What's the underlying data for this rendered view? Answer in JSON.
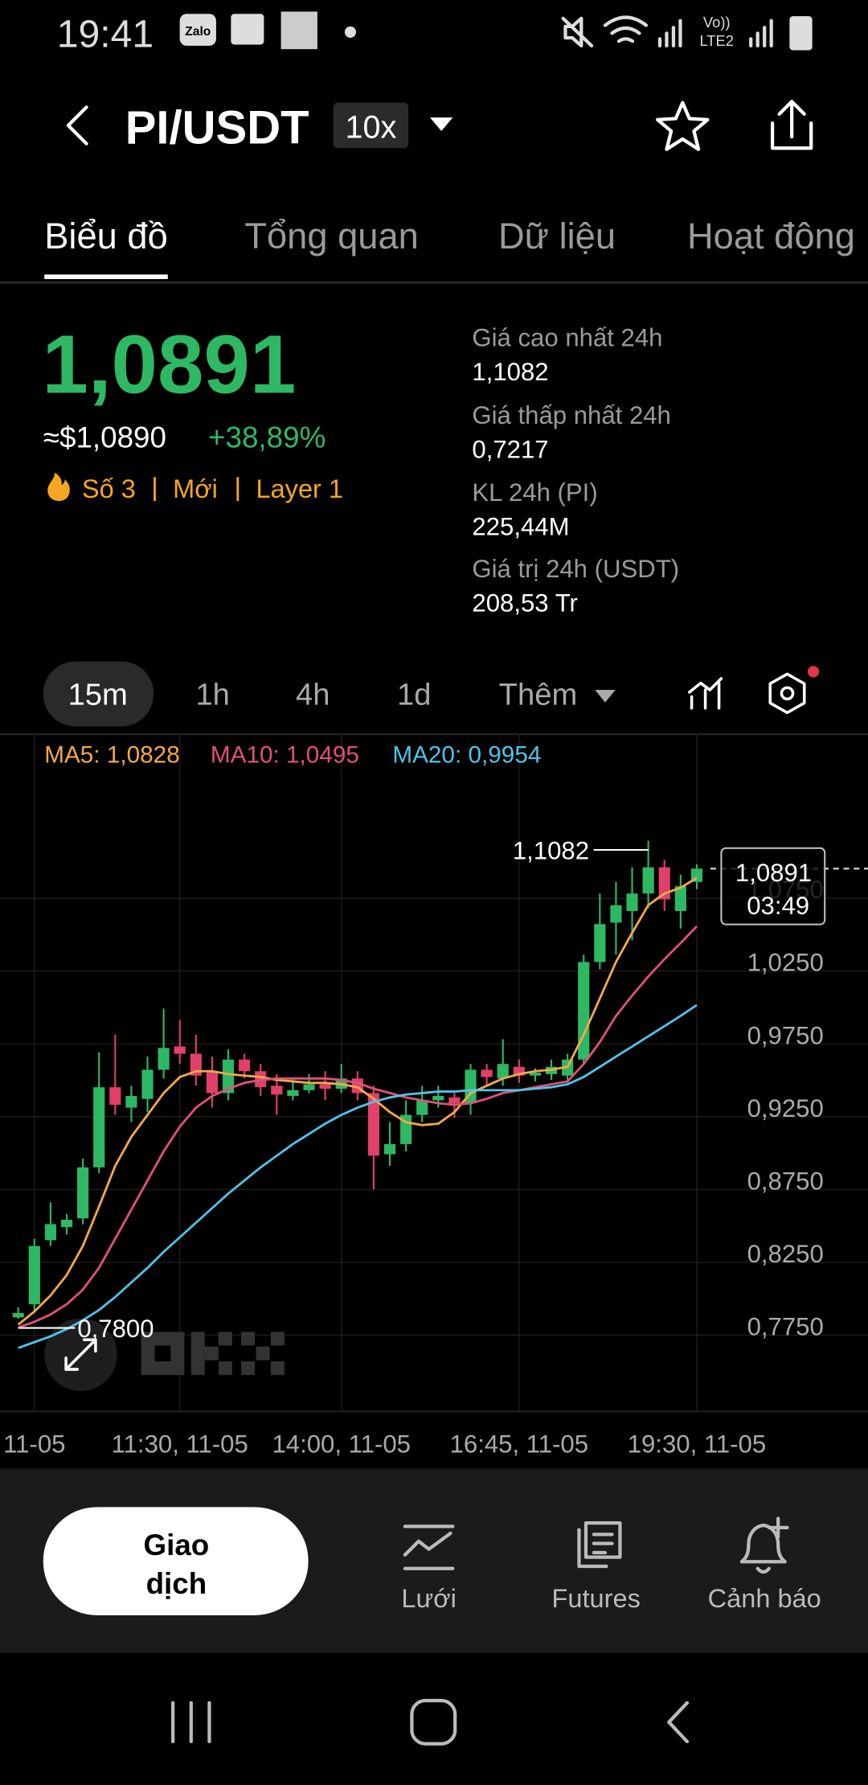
{
  "status_bar": {
    "time": "19:41",
    "zalo": "Zalo",
    "volte": "Vo))",
    "lte": "LTE2"
  },
  "header": {
    "pair": "PI/USDT",
    "leverage": "10x"
  },
  "tabs": {
    "items": [
      "Biểu đồ",
      "Tổng quan",
      "Dữ liệu",
      "Hoạt động"
    ],
    "active": 0
  },
  "ticker": {
    "price": "1,0891",
    "usd": "≈$1,0890",
    "change": "+38,89%",
    "tags": [
      "Số 3",
      "Mới",
      "Layer 1"
    ]
  },
  "stats": [
    {
      "label": "Giá cao nhất 24h",
      "value": "1,1082"
    },
    {
      "label": "Giá thấp nhất 24h",
      "value": "0,7217"
    },
    {
      "label": "KL 24h (PI)",
      "value": "225,44M"
    },
    {
      "label": "Giá trị 24h (USDT)",
      "value": "208,53 Tr"
    }
  ],
  "timeframes": {
    "items": [
      "15m",
      "1h",
      "4h",
      "1d",
      "Thêm"
    ],
    "active": 0
  },
  "chart_data": {
    "type": "candlestick",
    "categories": [
      null,
      null,
      null,
      null,
      null,
      null,
      null,
      null,
      null,
      null,
      null,
      null,
      null,
      null,
      null,
      null,
      null,
      null,
      null,
      null,
      null,
      null,
      null,
      null,
      null,
      null,
      null,
      null,
      null,
      null,
      null,
      null,
      null,
      null,
      null,
      null,
      null,
      null,
      null,
      null,
      null,
      null,
      null
    ],
    "open": [
      0.781,
      0.79,
      0.834,
      0.843,
      0.849,
      0.884,
      0.939,
      0.925,
      0.931,
      0.951,
      0.967,
      0.962,
      0.95,
      0.935,
      0.958,
      0.95,
      0.94,
      0.933,
      0.937,
      0.941,
      0.938,
      0.945,
      0.935,
      0.893,
      0.9,
      0.92,
      0.93,
      0.932,
      0.928,
      0.951,
      0.945,
      0.953,
      0.947,
      0.948,
      0.947,
      0.958,
      1.025,
      1.052,
      1.06,
      1.072,
      1.09,
      1.06,
      1.08
    ],
    "high": [
      0.788,
      0.835,
      0.86,
      0.852,
      0.89,
      0.963,
      0.975,
      0.94,
      0.96,
      0.993,
      0.985,
      0.975,
      0.96,
      0.965,
      0.962,
      0.955,
      0.948,
      0.945,
      0.948,
      0.95,
      0.955,
      0.95,
      0.94,
      0.915,
      0.93,
      0.94,
      0.94,
      0.935,
      0.955,
      0.955,
      0.972,
      0.958,
      0.952,
      0.958,
      0.962,
      1.03,
      1.072,
      1.08,
      1.09,
      1.1082,
      1.095,
      1.085,
      1.092
    ],
    "low": [
      0.78,
      0.785,
      0.83,
      0.838,
      0.845,
      0.88,
      0.92,
      0.915,
      0.922,
      0.945,
      0.955,
      0.94,
      0.925,
      0.93,
      0.945,
      0.933,
      0.92,
      0.93,
      0.935,
      0.93,
      0.935,
      0.93,
      0.869,
      0.885,
      0.895,
      0.915,
      0.925,
      0.918,
      0.92,
      0.94,
      0.94,
      0.942,
      0.943,
      0.944,
      0.942,
      0.955,
      1.02,
      1.03,
      1.04,
      1.062,
      1.06,
      1.048,
      1.075
    ],
    "close": [
      0.784,
      0.83,
      0.845,
      0.848,
      0.884,
      0.939,
      0.927,
      0.933,
      0.951,
      0.966,
      0.962,
      0.947,
      0.935,
      0.958,
      0.95,
      0.939,
      0.934,
      0.937,
      0.941,
      0.938,
      0.945,
      0.935,
      0.892,
      0.9,
      0.92,
      0.93,
      0.933,
      0.928,
      0.951,
      0.946,
      0.955,
      0.947,
      0.949,
      0.953,
      0.958,
      1.025,
      1.051,
      1.064,
      1.072,
      1.09,
      1.068,
      1.077,
      1.0891
    ],
    "up_color": "#2fb864",
    "down_color": "#e0406a",
    "series": [
      {
        "name": "MA5: 1,0828",
        "color": "#f5a84a",
        "values": [
          0.776,
          0.785,
          0.796,
          0.81,
          0.83,
          0.857,
          0.885,
          0.905,
          0.92,
          0.935,
          0.946,
          0.95,
          0.95,
          0.948,
          0.947,
          0.946,
          0.944,
          0.943,
          0.942,
          0.942,
          0.941,
          0.939,
          0.931,
          0.922,
          0.915,
          0.913,
          0.914,
          0.922,
          0.935,
          0.94,
          0.945,
          0.948,
          0.95,
          0.951,
          0.953,
          0.975,
          1.0,
          1.025,
          1.045,
          1.064,
          1.072,
          1.076,
          1.0828
        ]
      },
      {
        "name": "MA10: 1,0495",
        "color": "#e0507a",
        "values": [
          0.774,
          0.778,
          0.783,
          0.79,
          0.8,
          0.815,
          0.835,
          0.855,
          0.875,
          0.895,
          0.912,
          0.925,
          0.933,
          0.938,
          0.942,
          0.944,
          0.945,
          0.945,
          0.945,
          0.945,
          0.944,
          0.942,
          0.938,
          0.935,
          0.932,
          0.93,
          0.928,
          0.927,
          0.928,
          0.931,
          0.935,
          0.937,
          0.939,
          0.941,
          0.943,
          0.955,
          0.97,
          0.988,
          1.002,
          1.015,
          1.027,
          1.038,
          1.0495
        ]
      },
      {
        "name": "MA20: 0,9954",
        "color": "#4fc3e8",
        "values": [
          0.76,
          0.764,
          0.768,
          0.773,
          0.779,
          0.786,
          0.795,
          0.805,
          0.815,
          0.826,
          0.836,
          0.846,
          0.856,
          0.866,
          0.875,
          0.884,
          0.892,
          0.9,
          0.907,
          0.914,
          0.92,
          0.925,
          0.929,
          0.932,
          0.934,
          0.935,
          0.936,
          0.936,
          0.937,
          0.937,
          0.937,
          0.937,
          0.938,
          0.939,
          0.941,
          0.946,
          0.953,
          0.96,
          0.967,
          0.974,
          0.981,
          0.988,
          0.9954
        ]
      }
    ],
    "xlim": [
      -1.13,
      52.6
    ],
    "ylim": [
      0.7164,
      1.1813
    ],
    "yticks": [
      {
        "value": 1.075,
        "label": "1,0750"
      },
      {
        "value": 1.025,
        "label": "1,0250"
      },
      {
        "value": 0.975,
        "label": "0,9750"
      },
      {
        "value": 0.925,
        "label": "0,9250"
      },
      {
        "value": 0.875,
        "label": "0,8750"
      },
      {
        "value": 0.825,
        "label": "0,8250"
      },
      {
        "value": 0.775,
        "label": "0,7750"
      }
    ],
    "xticks": [
      {
        "value": 1,
        "label": "11-05"
      },
      {
        "value": 10,
        "label": "11:30, 11-05"
      },
      {
        "value": 20,
        "label": "14:00, 11-05"
      },
      {
        "value": 31,
        "label": "16:45, 11-05"
      },
      {
        "value": 42,
        "label": "19:30, 11-05"
      }
    ],
    "grid": true,
    "high_marker": {
      "value": 1.1082,
      "label": "1,1082"
    },
    "low_marker": {
      "value": 0.78,
      "label": "0,7800"
    },
    "last_price": {
      "value": 1.0891,
      "label": "1,0891",
      "countdown": "03:49"
    }
  },
  "bottom_bar": {
    "trade": [
      "Giao",
      "dịch"
    ],
    "actions": [
      "Lưới",
      "Futures",
      "Cảnh báo"
    ]
  }
}
